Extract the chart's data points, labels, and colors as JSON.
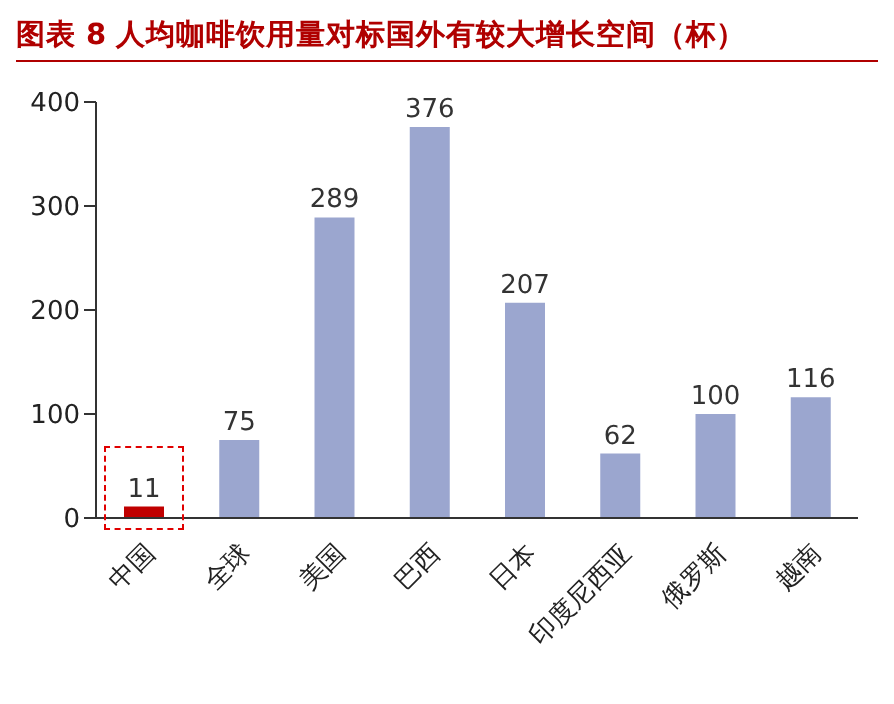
{
  "chart_data": {
    "type": "bar",
    "title": "图表 8 人均咖啡饮用量对标国外有较大增长空间（杯）",
    "categories": [
      "中国",
      "全球",
      "美国",
      "巴西",
      "日本",
      "印度尼西亚",
      "俄罗斯",
      "越南"
    ],
    "values": [
      11,
      75,
      289,
      376,
      207,
      62,
      100,
      116
    ],
    "colors": [
      "#c00000",
      "#9ba6cf",
      "#9ba6cf",
      "#9ba6cf",
      "#9ba6cf",
      "#9ba6cf",
      "#9ba6cf",
      "#9ba6cf"
    ],
    "ylim": [
      0,
      400
    ],
    "yticks": [
      0,
      100,
      200,
      300,
      400
    ],
    "grid": false,
    "data_labels": true
  }
}
